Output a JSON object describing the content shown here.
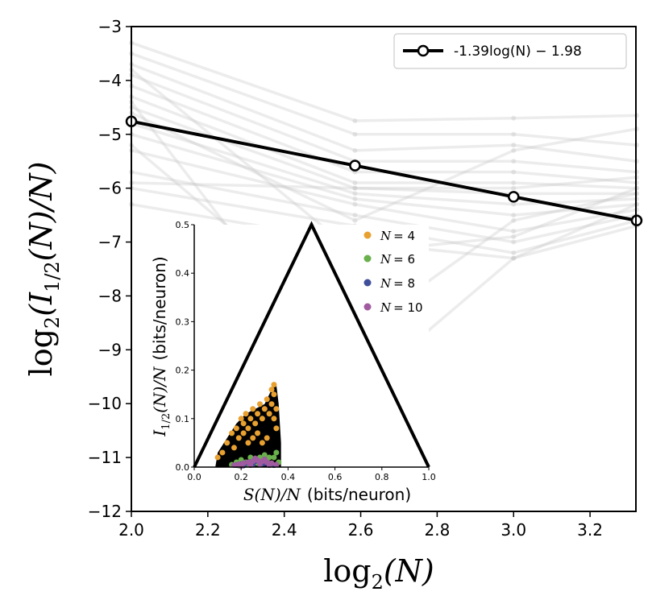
{
  "chart_data": [
    {
      "type": "line",
      "xlabel_math": "log",
      "xlabel_sub": "2",
      "xlabel_arg": "(N)",
      "ylabel_math": "log",
      "ylabel_sub": "2",
      "ylabel_arg": "(I",
      "ylabel_sub2": "1/2",
      "ylabel_rest": "(N)/N)",
      "xlim": [
        2.0,
        3.32
      ],
      "ylim": [
        -12,
        -3
      ],
      "xticks": [
        "2.0",
        "2.2",
        "2.4",
        "2.6",
        "2.8",
        "3.0",
        "3.2"
      ],
      "xtick_values": [
        2.0,
        2.2,
        2.4,
        2.6,
        2.8,
        3.0,
        3.2
      ],
      "yticks": [
        "−3",
        "−4",
        "−5",
        "−6",
        "−7",
        "−8",
        "−9",
        "−10",
        "−11",
        "−12"
      ],
      "ytick_values": [
        -3,
        -4,
        -5,
        -6,
        -7,
        -8,
        -9,
        -10,
        -11,
        -12
      ],
      "legend": {
        "label": "-1.39log(N) − 1.98",
        "placement": "upper right"
      },
      "fit_series": {
        "x": [
          2.0,
          2.585,
          3.0,
          3.322
        ],
        "y": [
          -4.76,
          -5.58,
          -6.16,
          -6.6
        ],
        "color": "#000000"
      },
      "background_series_color": "#c8c8c8",
      "background_series_x": [
        2.0,
        2.585,
        3.0,
        3.322
      ],
      "background_series": [
        [
          -3.3,
          -4.75,
          -4.7,
          -4.65
        ],
        [
          -3.5,
          -5.0,
          -5.0,
          -5.2
        ],
        [
          -3.7,
          -5.3,
          -5.2,
          -5.5
        ],
        [
          -3.9,
          -5.5,
          -5.5,
          -5.7
        ],
        [
          -4.1,
          -5.7,
          -5.7,
          -5.9
        ],
        [
          -4.3,
          -5.9,
          -5.9,
          -6.0
        ],
        [
          -4.5,
          -6.0,
          -6.1,
          -6.1
        ],
        [
          -4.8,
          -6.1,
          -6.3,
          -6.2
        ],
        [
          -5.0,
          -6.2,
          -6.5,
          -6.3
        ],
        [
          -5.3,
          -6.3,
          -6.8,
          -6.4
        ],
        [
          -5.7,
          -6.5,
          -7.0,
          -6.5
        ],
        [
          -6.0,
          -6.7,
          -7.2,
          -6.6
        ],
        [
          -6.3,
          -7.0,
          -7.3,
          -6.7
        ],
        [
          -4.4,
          -9.8,
          -7.3,
          -6.3
        ],
        [
          -5.2,
          -8.7,
          -6.6,
          -6.1
        ],
        [
          -3.8,
          -7.2,
          -6.9,
          -6.0
        ],
        [
          -4.6,
          -6.6,
          -5.3,
          -4.9
        ],
        [
          -5.9,
          -6.0,
          -6.0,
          -5.8
        ]
      ]
    },
    {
      "type": "scatter",
      "xlabel_math": "S(N)/N",
      "xlabel_unit": "(bits/neuron)",
      "ylabel_math": "I",
      "ylabel_sub": "1/2",
      "ylabel_rest": "(N)/N",
      "ylabel_unit": "(bits/neuron)",
      "xlim": [
        0.0,
        1.0
      ],
      "ylim": [
        0.0,
        0.5
      ],
      "xticks": [
        "0.0",
        "0.2",
        "0.4",
        "0.6",
        "0.8",
        "1.0"
      ],
      "xtick_values": [
        0.0,
        0.2,
        0.4,
        0.6,
        0.8,
        1.0
      ],
      "yticks": [
        "0.0",
        "0.1",
        "0.2",
        "0.3",
        "0.4",
        "0.5"
      ],
      "ytick_values": [
        0.0,
        0.1,
        0.2,
        0.3,
        0.4,
        0.5
      ],
      "bound": {
        "x": [
          0.0,
          0.5,
          1.0
        ],
        "y": [
          0.0,
          0.5,
          0.0
        ],
        "color": "#000000"
      },
      "legend_placement": "upper right",
      "series": [
        {
          "name": "N = 4",
          "label_prefix": "N",
          "label_value": "= 4",
          "color": "#e8a030",
          "x": [
            0.1,
            0.12,
            0.14,
            0.16,
            0.18,
            0.2,
            0.21,
            0.22,
            0.23,
            0.24,
            0.25,
            0.26,
            0.27,
            0.28,
            0.29,
            0.3,
            0.31,
            0.32,
            0.33,
            0.34,
            0.35,
            0.34,
            0.33,
            0.31,
            0.29,
            0.27,
            0.25,
            0.23,
            0.21,
            0.19,
            0.17,
            0.35,
            0.34
          ],
          "y": [
            0.02,
            0.03,
            0.05,
            0.07,
            0.08,
            0.1,
            0.09,
            0.11,
            0.08,
            0.1,
            0.12,
            0.09,
            0.11,
            0.13,
            0.1,
            0.12,
            0.14,
            0.11,
            0.13,
            0.15,
            0.12,
            0.17,
            0.16,
            0.06,
            0.05,
            0.07,
            0.06,
            0.05,
            0.07,
            0.06,
            0.04,
            0.08,
            0.1
          ]
        },
        {
          "name": "N = 6",
          "label_prefix": "N",
          "label_value": "= 6",
          "color": "#6ab04c",
          "x": [
            0.16,
            0.18,
            0.2,
            0.22,
            0.24,
            0.26,
            0.28,
            0.3,
            0.32,
            0.34,
            0.36,
            0.19,
            0.23,
            0.27,
            0.31,
            0.35
          ],
          "y": [
            0.005,
            0.01,
            0.015,
            0.01,
            0.02,
            0.015,
            0.02,
            0.025,
            0.02,
            0.02,
            0.01,
            0.003,
            0.006,
            0.008,
            0.012,
            0.03
          ]
        },
        {
          "name": "N = 8",
          "label_prefix": "N",
          "label_value": "= 8",
          "color": "#3f4f9a",
          "x": [
            0.18,
            0.2,
            0.22,
            0.24,
            0.26,
            0.28,
            0.3,
            0.32,
            0.34,
            0.21,
            0.25,
            0.29,
            0.33
          ],
          "y": [
            0.004,
            0.006,
            0.008,
            0.01,
            0.012,
            0.01,
            0.008,
            0.006,
            0.004,
            0.003,
            0.005,
            0.007,
            0.005
          ]
        },
        {
          "name": "N = 10",
          "label_prefix": "N",
          "label_value": "= 10",
          "color": "#a05aa0",
          "x": [
            0.17,
            0.19,
            0.21,
            0.23,
            0.25,
            0.27,
            0.29,
            0.31,
            0.33,
            0.35,
            0.2,
            0.24,
            0.28,
            0.32,
            0.26,
            0.3
          ],
          "y": [
            0.004,
            0.006,
            0.008,
            0.01,
            0.012,
            0.014,
            0.012,
            0.01,
            0.008,
            0.005,
            0.002,
            0.004,
            0.006,
            0.004,
            0.018,
            0.016
          ]
        }
      ]
    }
  ]
}
